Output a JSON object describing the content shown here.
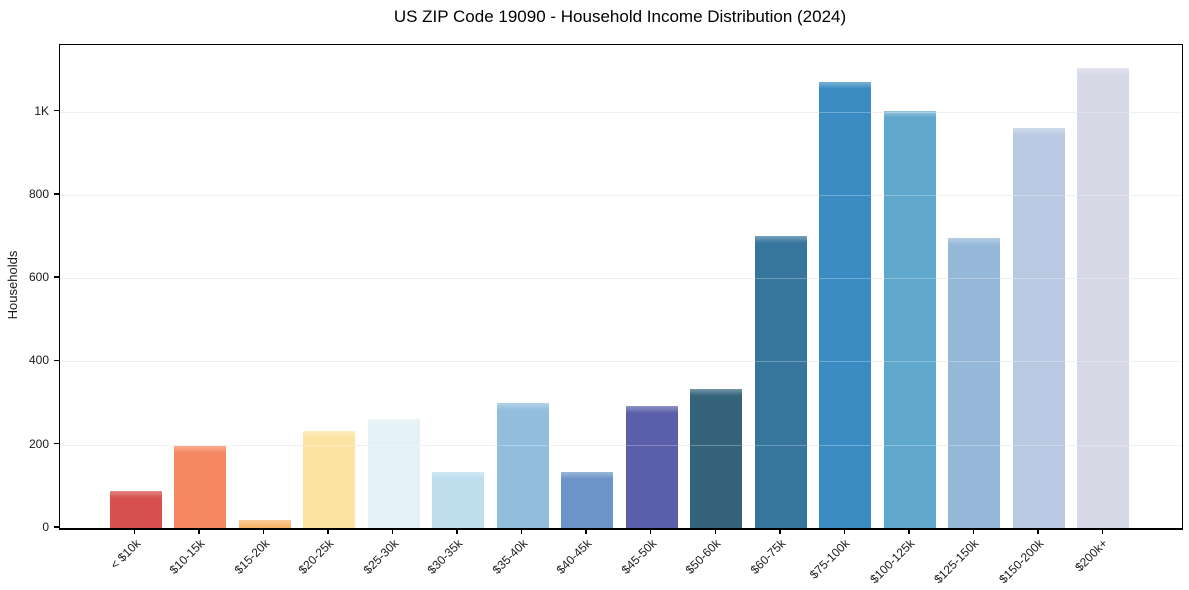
{
  "chart_data": {
    "type": "bar",
    "title": "US ZIP Code 19090 - Household Income Distribution (2024)",
    "xlabel": "",
    "ylabel": "Households",
    "categories": [
      "< $10k",
      "$10-15k",
      "$15-20k",
      "$20-25k",
      "$25-30k",
      "$30-35k",
      "$35-40k",
      "$40-45k",
      "$45-50k",
      "$50-60k",
      "$60-75k",
      "$75-100k",
      "$100-125k",
      "$125-150k",
      "$150-200k",
      "$200k+"
    ],
    "values": [
      90,
      198,
      20,
      234,
      261,
      134,
      300,
      135,
      294,
      335,
      701,
      1070,
      1002,
      697,
      961,
      1104
    ],
    "bar_colors": [
      "#d5504e",
      "#f4875f",
      "#f9b469",
      "#fce3a2",
      "#e4f1f6",
      "#bcdeed",
      "#92bedd",
      "#6b94c8",
      "#5b5fa9",
      "#34637a",
      "#36759c",
      "#398bc2",
      "#60a7cc",
      "#95b8d9",
      "#bac9e2",
      "#d7d9e7"
    ],
    "y_ticks": [
      {
        "value": 0,
        "label": "0"
      },
      {
        "value": 200,
        "label": "200"
      },
      {
        "value": 400,
        "label": "400"
      },
      {
        "value": 600,
        "label": "600"
      },
      {
        "value": 800,
        "label": "800"
      },
      {
        "value": 1000,
        "label": "1K"
      }
    ],
    "ylim": [
      0,
      1160
    ],
    "grid": "horizontal",
    "legend": "none",
    "background_color": "#ffffff",
    "gridline_color": "#ebebeb",
    "axis_color": "#000000",
    "text_color": "#1a1a1a"
  }
}
